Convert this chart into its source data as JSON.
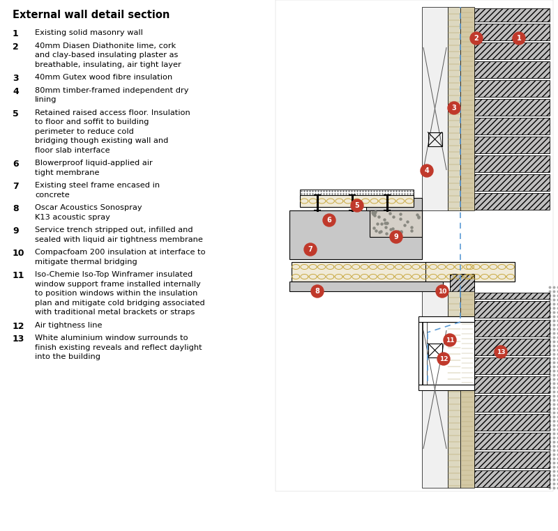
{
  "title": "External wall detail section",
  "bg_color": "#ffffff",
  "legend_items": [
    {
      "num": "1",
      "text": "Existing solid masonry wall",
      "lines": 1
    },
    {
      "num": "2",
      "text": "40mm Diasen Diathonite lime, cork\nand clay-based insulating plaster as\nbreathable, insulating, air tight layer",
      "lines": 3
    },
    {
      "num": "3",
      "text": "40mm Gutex wood fibre insulation",
      "lines": 1
    },
    {
      "num": "4",
      "text": "80mm timber-framed independent dry\nlining",
      "lines": 2
    },
    {
      "num": "5",
      "text": "Retained raised access floor. Insulation\nto floor and soffit to building\nperimeter to reduce cold\nbridging though existing wall and\nfloor slab interface",
      "lines": 5
    },
    {
      "num": "6",
      "text": "Blowerproof liquid-applied air\ntight membrane",
      "lines": 2
    },
    {
      "num": "7",
      "text": "Existing steel frame encased in\nconcrete",
      "lines": 2
    },
    {
      "num": "8",
      "text": "Oscar Acoustics Sonospray\nK13 acoustic spray",
      "lines": 2
    },
    {
      "num": "9",
      "text": "Service trench stripped out, infilled and\nsealed with liquid air tightness membrane",
      "lines": 2
    },
    {
      "num": "10",
      "text": "Compacfoam 200 insulation at interface to\nmitigate thermal bridging",
      "lines": 2
    },
    {
      "num": "11",
      "text": "Iso-Chemie Iso-Top Winframer insulated\nwindow support frame installed internally\nto position windows within the insulation\nplan and mitigate cold bridging associated\nwith traditional metal brackets or straps",
      "lines": 5
    },
    {
      "num": "12",
      "text": "Air tightness line",
      "lines": 1
    },
    {
      "num": "13",
      "text": "White aluminium window surrounds to\nfinish existing reveals and reflect daylight\ninto the building",
      "lines": 3
    }
  ],
  "red_circle_color": "#c0392b",
  "white": "#ffffff",
  "blue_dash": "#5b9bd5",
  "masonry_fill": "#c0bfbf",
  "insul_fill": "#f0ead8",
  "insul_pattern": "#c8a840",
  "concrete_fill": "#c8c8c8",
  "dark_line": "#222222",
  "gray_render": "#d4c9a5",
  "insul3_fill": "#ddd8c0"
}
